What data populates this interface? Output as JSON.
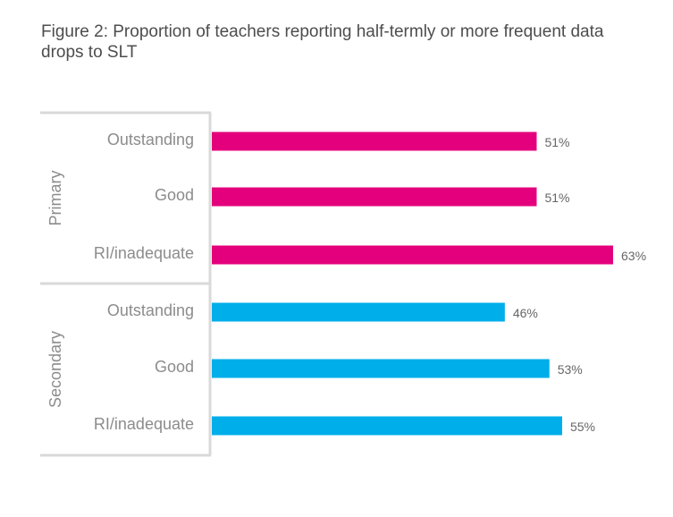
{
  "title": "Figure 2: Proportion of teachers reporting half-termly or more frequent data drops to SLT",
  "colors": {
    "primary": "#e4007c",
    "secondary": "#00aeea",
    "axis": "#d9d9d9"
  },
  "chart_data": {
    "type": "bar",
    "orientation": "horizontal",
    "title": "Figure 2: Proportion of teachers reporting half-termly or more frequent data drops to SLT",
    "groups": [
      {
        "name": "Primary",
        "color": "#e4007c",
        "categories": [
          "Outstanding",
          "Good",
          "RI/inadequate"
        ],
        "values": [
          51,
          51,
          63
        ],
        "labels": [
          "51%",
          "51%",
          "63%"
        ]
      },
      {
        "name": "Secondary",
        "color": "#00aeea",
        "categories": [
          "Outstanding",
          "Good",
          "RI/inadequate"
        ],
        "values": [
          46,
          53,
          55
        ],
        "labels": [
          "46%",
          "53%",
          "55%"
        ]
      }
    ],
    "unit": "%",
    "xlim": [
      0,
      63
    ],
    "grid": false,
    "legend": "none"
  }
}
